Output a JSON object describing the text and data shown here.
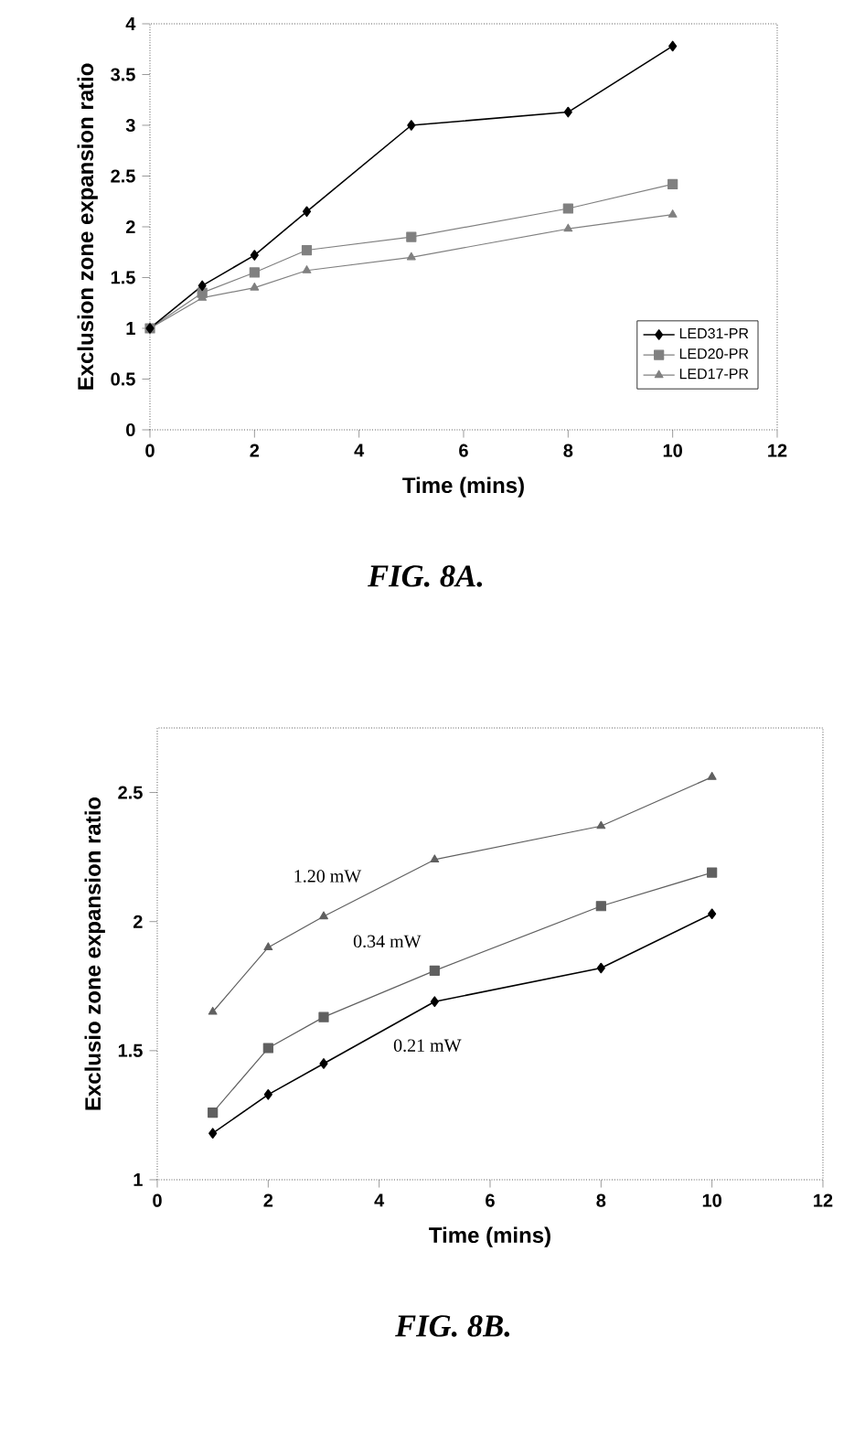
{
  "chart_data": [
    {
      "type": "line",
      "xlabel": "Time  (mins)",
      "ylabel": "Exclusion zone expansion ratio",
      "annotations": [
        "FIG. 8A."
      ],
      "x": [
        0,
        1,
        2,
        3,
        5,
        8,
        10
      ],
      "xlim": [
        0,
        12
      ],
      "xticks": [
        0,
        2,
        4,
        6,
        8,
        10,
        12
      ],
      "ylim": [
        0,
        4
      ],
      "yticks": [
        0,
        0.5,
        1,
        1.5,
        2,
        2.5,
        3,
        3.5,
        4
      ],
      "grid": false,
      "legend": "bottom right",
      "series": [
        {
          "name": "LED31-PR",
          "color": "#000000",
          "marker": "diamond",
          "values": [
            1,
            1.42,
            1.72,
            2.15,
            3.0,
            3.13,
            3.78
          ]
        },
        {
          "name": "LED20-PR",
          "color": "#808080",
          "marker": "square",
          "values": [
            1,
            1.35,
            1.55,
            1.77,
            1.9,
            2.18,
            2.42
          ]
        },
        {
          "name": "LED17-PR",
          "color": "#808080",
          "marker": "triangle",
          "values": [
            1,
            1.3,
            1.4,
            1.57,
            1.7,
            1.98,
            2.12
          ]
        }
      ]
    },
    {
      "type": "line",
      "xlabel": "Time (mins)",
      "ylabel": "Exclusio zone expansion ratio",
      "annotations": [
        "FIG. 8B."
      ],
      "x": [
        1,
        2,
        3,
        5,
        8,
        10
      ],
      "xlim": [
        0,
        12
      ],
      "xticks": [
        0,
        2,
        4,
        6,
        8,
        10,
        12
      ],
      "ylim": [
        1,
        2.75
      ],
      "yticks": [
        1,
        1.5,
        2,
        2.5
      ],
      "grid": false,
      "series": [
        {
          "name": "0.21 mW",
          "color": "#000000",
          "marker": "diamond",
          "values": [
            1.18,
            1.33,
            1.45,
            1.69,
            1.82,
            2.03
          ]
        },
        {
          "name": "0.34 mW",
          "color": "#606060",
          "marker": "square",
          "values": [
            1.26,
            1.51,
            1.63,
            1.81,
            2.06,
            2.19
          ]
        },
        {
          "name": "1.20 mW",
          "color": "#606060",
          "marker": "triangle",
          "values": [
            1.65,
            1.9,
            2.02,
            2.24,
            2.37,
            2.56
          ]
        }
      ]
    }
  ]
}
